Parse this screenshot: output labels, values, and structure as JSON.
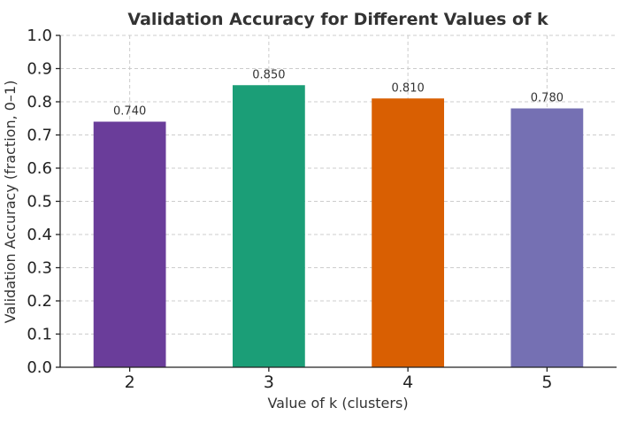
{
  "chart_data": {
    "type": "bar",
    "title": "Validation Accuracy for Different Values of k",
    "xlabel": "Value of k (clusters)",
    "ylabel": "Validation Accuracy (fraction, 0–1)",
    "categories": [
      "2",
      "3",
      "4",
      "5"
    ],
    "values": [
      0.74,
      0.85,
      0.81,
      0.78
    ],
    "data_labels": [
      "0.740",
      "0.850",
      "0.810",
      "0.780"
    ],
    "colors": [
      "#6a3d9a",
      "#1b9e77",
      "#d95f02",
      "#7570b3"
    ],
    "ylim": [
      0,
      1.0
    ],
    "yticks": [
      "0.0",
      "0.1",
      "0.2",
      "0.3",
      "0.4",
      "0.5",
      "0.6",
      "0.7",
      "0.8",
      "0.9",
      "1.0"
    ],
    "grid": true,
    "legend": false
  }
}
